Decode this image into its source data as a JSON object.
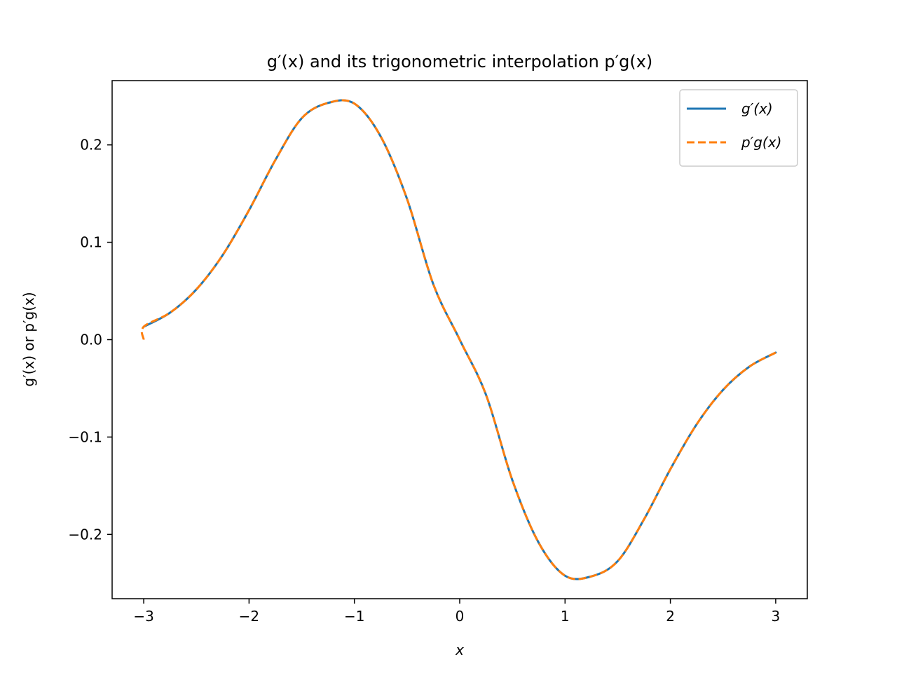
{
  "chart_data": {
    "type": "line",
    "title": "g′(x) and its trigonometric interpolation p′g(x)",
    "xlabel": "x",
    "ylabel": "g′(x) or p′g(x)",
    "xlim": [
      -3.3,
      3.3
    ],
    "ylim": [
      -0.266,
      0.266
    ],
    "xticks": [
      -3,
      -2,
      -1,
      0,
      1,
      2,
      3
    ],
    "xtick_labels": [
      "−3",
      "−2",
      "−1",
      "0",
      "1",
      "2",
      "3"
    ],
    "yticks": [
      -0.2,
      -0.1,
      0.0,
      0.1,
      0.2
    ],
    "ytick_labels": [
      "−0.2",
      "−0.1",
      "0.0",
      "0.1",
      "0.2"
    ],
    "grid": false,
    "legend_position": "top-right",
    "series": [
      {
        "name": "g′(x)",
        "color": "#1f77b4",
        "style": "solid",
        "x": [
          -3.0,
          -2.75,
          -2.5,
          -2.25,
          -2.0,
          -1.75,
          -1.5,
          -1.25,
          -1.0,
          -0.75,
          -0.5,
          -0.25,
          0.0,
          0.25,
          0.5,
          0.75,
          1.0,
          1.25,
          1.5,
          1.75,
          2.0,
          2.25,
          2.5,
          2.75,
          3.0
        ],
        "y": [
          0.0133,
          0.0277,
          0.0516,
          0.0869,
          0.133,
          0.1845,
          0.2274,
          0.2431,
          0.2424,
          0.2086,
          0.1444,
          0.0567,
          0.0,
          -0.0567,
          -0.1444,
          -0.2086,
          -0.2424,
          -0.2431,
          -0.2274,
          -0.1845,
          -0.133,
          -0.0869,
          -0.0516,
          -0.0277,
          -0.0133
        ]
      },
      {
        "name": "p′g(x)",
        "color": "#ff7f0e",
        "style": "dashed",
        "x": [
          -3.0,
          -3.0,
          -2.75,
          -2.5,
          -2.25,
          -2.0,
          -1.75,
          -1.5,
          -1.25,
          -1.0,
          -0.75,
          -0.5,
          -0.25,
          0.0,
          0.25,
          0.5,
          0.75,
          1.0,
          1.25,
          1.5,
          1.75,
          2.0,
          2.25,
          2.5,
          2.75,
          3.0
        ],
        "y": [
          0.0,
          0.0133,
          0.0277,
          0.0516,
          0.0869,
          0.133,
          0.1845,
          0.2274,
          0.2431,
          0.2424,
          0.2086,
          0.1444,
          0.0567,
          0.0,
          -0.0567,
          -0.1444,
          -0.2086,
          -0.2424,
          -0.2431,
          -0.2274,
          -0.1845,
          -0.133,
          -0.0869,
          -0.0516,
          -0.0277,
          -0.0133
        ]
      }
    ]
  }
}
